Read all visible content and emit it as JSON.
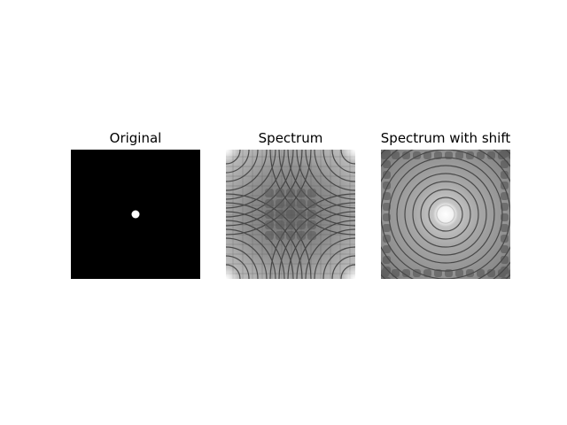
{
  "panels": [
    {
      "title": "Original",
      "content": "white dot on black"
    },
    {
      "title": "Spectrum",
      "content": "unshifted ring spectrum"
    },
    {
      "title": "Spectrum with shift",
      "content": "centered ring spectrum"
    }
  ],
  "colors": {
    "background": "#ffffff",
    "black": "#000000",
    "white": "#ffffff"
  }
}
